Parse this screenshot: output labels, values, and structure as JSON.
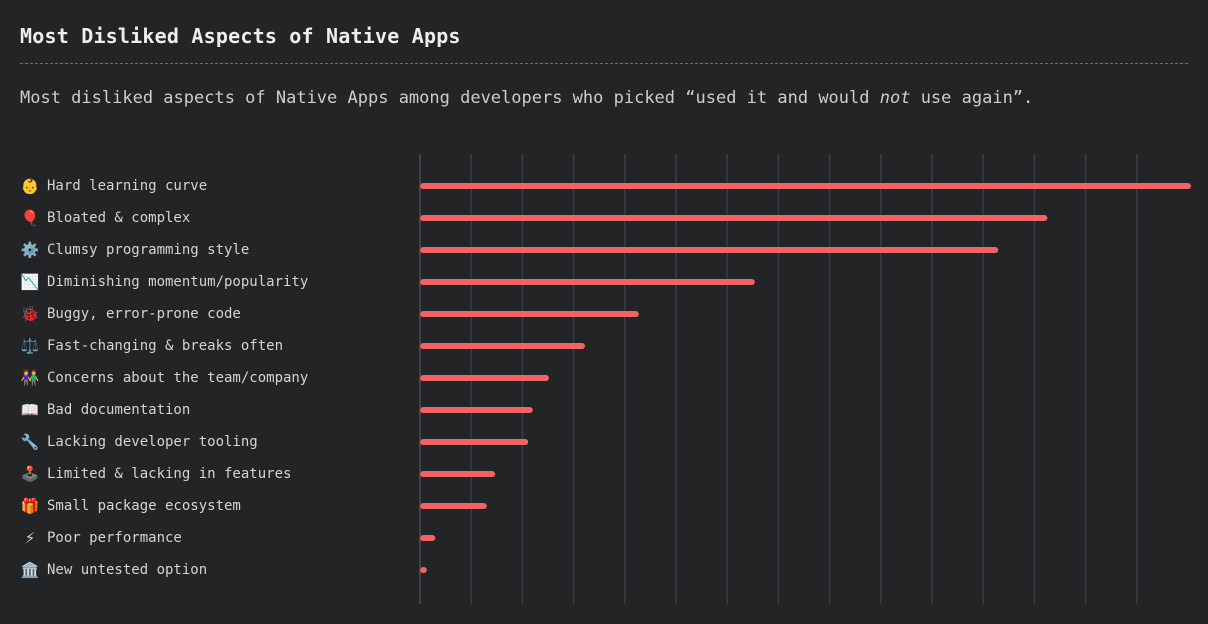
{
  "header": {
    "title": "Most Disliked Aspects of Native Apps",
    "subtitle_pre": "Most disliked aspects of Native Apps among developers who picked “used it and would ",
    "subtitle_em": "not",
    "subtitle_post": " use again”."
  },
  "chart_data": {
    "type": "bar",
    "orientation": "horizontal",
    "bar_color": "#f06464",
    "categories": [
      "Hard learning curve",
      "Bloated & complex",
      "Clumsy programming style",
      "Diminishing momentum/popularity",
      "Buggy, error-prone code",
      "Fast-changing & breaks often",
      "Concerns about the team/company",
      "Bad documentation",
      "Lacking developer tooling",
      "Limited & lacking in features",
      "Small package ecosystem",
      "Poor performance",
      "New untested option"
    ],
    "icons": [
      "👶",
      "🎈",
      "⚙️",
      "📉",
      "🐞",
      "⚖️",
      "👫",
      "📖",
      "🔧",
      "🕹️",
      "🎁",
      "⚡",
      "🏛️"
    ],
    "values": [
      100,
      81.3,
      74.9,
      43.2,
      28.1,
      21.1,
      16.4,
      14.3,
      13.7,
      9.4,
      8.3,
      1.6,
      0.5
    ],
    "xlim": [
      0,
      100
    ],
    "grid": true,
    "gridlines": 15
  }
}
